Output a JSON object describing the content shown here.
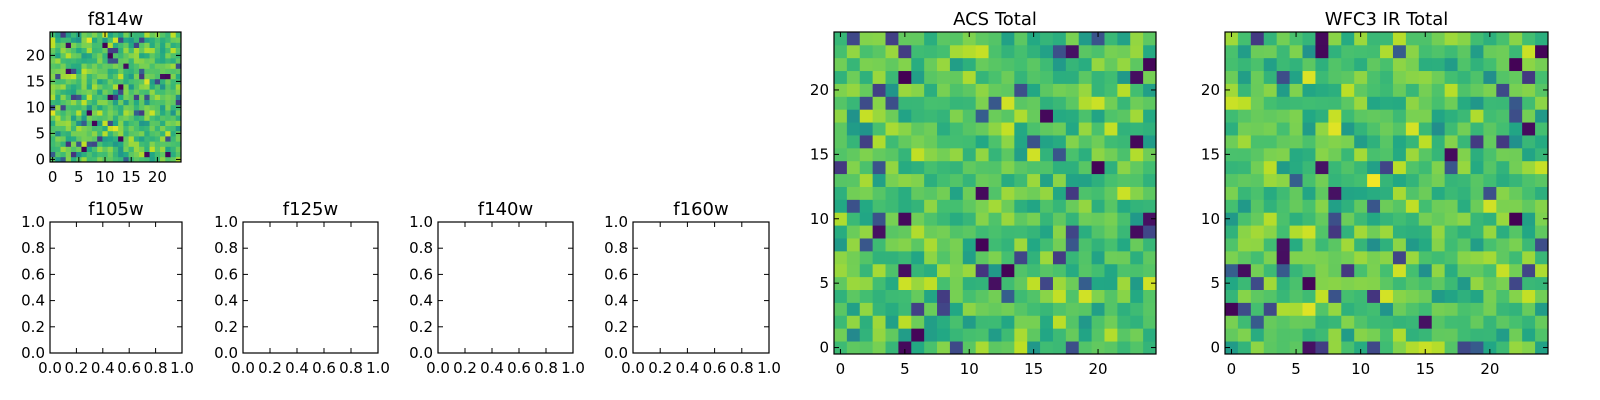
{
  "chart_data": [
    {
      "id": "f814w",
      "type": "heatmap",
      "title": "f814w",
      "grid_size": 25,
      "cmap": "viridis",
      "x_ticks": [
        "0",
        "5",
        "10",
        "15",
        "20"
      ],
      "y_ticks": [
        "0",
        "5",
        "10",
        "15",
        "20"
      ],
      "xlim": [
        -0.5,
        24.5
      ],
      "ylim": [
        -0.5,
        24.5
      ],
      "values_note": "random noise field, ~0.55 mean normalized intensity"
    },
    {
      "id": "f105w",
      "type": "heatmap",
      "title": "f105w",
      "empty": true,
      "x_ticks": [
        "0.0",
        "0.2",
        "0.4",
        "0.6",
        "0.8",
        "1.0"
      ],
      "y_ticks": [
        "0.0",
        "0.2",
        "0.4",
        "0.6",
        "0.8",
        "1.0"
      ],
      "xlim": [
        0,
        1
      ],
      "ylim": [
        0,
        1
      ]
    },
    {
      "id": "f125w",
      "type": "heatmap",
      "title": "f125w",
      "empty": true,
      "x_ticks": [
        "0.0",
        "0.2",
        "0.4",
        "0.6",
        "0.8",
        "1.0"
      ],
      "y_ticks": [
        "0.0",
        "0.2",
        "0.4",
        "0.6",
        "0.8",
        "1.0"
      ],
      "xlim": [
        0,
        1
      ],
      "ylim": [
        0,
        1
      ]
    },
    {
      "id": "f140w",
      "type": "heatmap",
      "title": "f140w",
      "empty": true,
      "x_ticks": [
        "0.0",
        "0.2",
        "0.4",
        "0.6",
        "0.8",
        "1.0"
      ],
      "y_ticks": [
        "0.0",
        "0.2",
        "0.4",
        "0.6",
        "0.8",
        "1.0"
      ],
      "xlim": [
        0,
        1
      ],
      "ylim": [
        0,
        1
      ]
    },
    {
      "id": "f160w",
      "type": "heatmap",
      "title": "f160w",
      "empty": true,
      "x_ticks": [
        "0.0",
        "0.2",
        "0.4",
        "0.6",
        "0.8",
        "1.0"
      ],
      "y_ticks": [
        "0.0",
        "0.2",
        "0.4",
        "0.6",
        "0.8",
        "1.0"
      ],
      "xlim": [
        0,
        1
      ],
      "ylim": [
        0,
        1
      ]
    },
    {
      "id": "acs_total",
      "type": "heatmap",
      "title": "ACS Total",
      "grid_size": 25,
      "cmap": "viridis",
      "x_ticks": [
        "0",
        "5",
        "10",
        "15",
        "20"
      ],
      "y_ticks": [
        "0",
        "5",
        "10",
        "15",
        "20"
      ],
      "xlim": [
        -0.5,
        24.5
      ],
      "ylim": [
        -0.5,
        24.5
      ]
    },
    {
      "id": "wfc3_ir_total",
      "type": "heatmap",
      "title": "WFC3 IR Total",
      "grid_size": 25,
      "cmap": "viridis",
      "x_ticks": [
        "0",
        "5",
        "10",
        "15",
        "20"
      ],
      "y_ticks": [
        "0",
        "5",
        "10",
        "15",
        "20"
      ],
      "xlim": [
        -0.5,
        24.5
      ],
      "ylim": [
        -0.5,
        24.5
      ]
    }
  ]
}
